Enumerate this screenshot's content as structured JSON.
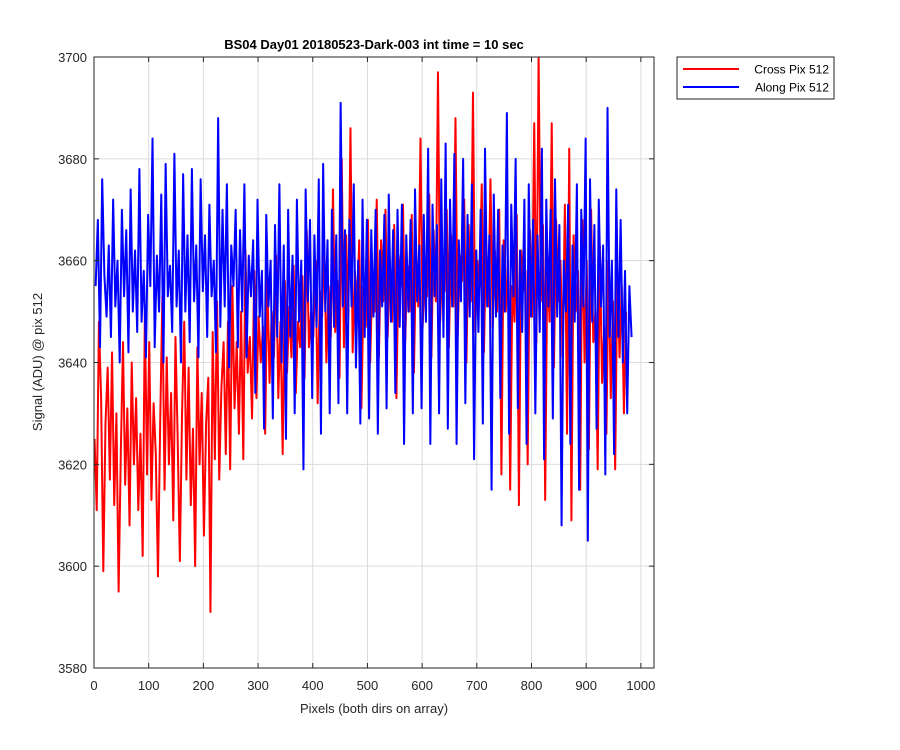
{
  "chart_data": {
    "type": "line",
    "title": "BS04 Day01 20180523-Dark-003 int time = 10 sec",
    "xlabel": "Pixels (both dirs on array)",
    "ylabel": "Signal (ADU) @ pix 512",
    "xlim": [
      0,
      1024
    ],
    "ylim": [
      3580,
      3700
    ],
    "xticks": [
      0,
      100,
      200,
      300,
      400,
      500,
      600,
      700,
      800,
      900,
      1000
    ],
    "yticks": [
      3580,
      3600,
      3620,
      3640,
      3660,
      3680,
      3700
    ],
    "grid": true,
    "legend_position": "outside-top-right",
    "series": [
      {
        "name": "Cross Pix 512",
        "color": "#ff0000",
        "x_start": 1,
        "x_step": 4,
        "values": [
          3625,
          3611,
          3648,
          3633,
          3599,
          3628,
          3639,
          3617,
          3642,
          3612,
          3630,
          3595,
          3622,
          3644,
          3616,
          3631,
          3608,
          3640,
          3620,
          3633,
          3611,
          3626,
          3602,
          3650,
          3618,
          3644,
          3613,
          3632,
          3622,
          3598,
          3628,
          3653,
          3615,
          3641,
          3620,
          3634,
          3609,
          3645,
          3625,
          3601,
          3630,
          3648,
          3617,
          3639,
          3612,
          3627,
          3600,
          3643,
          3620,
          3634,
          3606,
          3628,
          3637,
          3591,
          3646,
          3621,
          3652,
          3617,
          3635,
          3644,
          3622,
          3648,
          3619,
          3655,
          3631,
          3644,
          3626,
          3650,
          3621,
          3662,
          3638,
          3645,
          3629,
          3658,
          3633,
          3649,
          3640,
          3647,
          3626,
          3657,
          3636,
          3650,
          3641,
          3661,
          3633,
          3648,
          3622,
          3656,
          3638,
          3651,
          3641,
          3659,
          3634,
          3648,
          3643,
          3657,
          3637,
          3666,
          3643,
          3650,
          3645,
          3660,
          3632,
          3654,
          3649,
          3663,
          3640,
          3655,
          3645,
          3674,
          3646,
          3656,
          3637,
          3680,
          3643,
          3665,
          3649,
          3686,
          3642,
          3658,
          3651,
          3664,
          3631,
          3655,
          3647,
          3668,
          3640,
          3657,
          3650,
          3672,
          3641,
          3664,
          3652,
          3670,
          3645,
          3660,
          3648,
          3667,
          3633,
          3661,
          3655,
          3671,
          3644,
          3659,
          3650,
          3669,
          3638,
          3662,
          3651,
          3684,
          3647,
          3659,
          3653,
          3673,
          3641,
          3666,
          3652,
          3697,
          3648,
          3660,
          3654,
          3670,
          3643,
          3665,
          3651,
          3688,
          3645,
          3661,
          3656,
          3672,
          3640,
          3667,
          3652,
          3693,
          3646,
          3660,
          3655,
          3675,
          3642,
          3664,
          3651,
          3676,
          3647,
          3662,
          3650,
          3670,
          3618,
          3664,
          3650,
          3660,
          3615,
          3655,
          3648,
          3669,
          3612,
          3662,
          3654,
          3658,
          3620,
          3666,
          3649,
          3687,
          3644,
          3700,
          3652,
          3667,
          3613,
          3660,
          3648,
          3687,
          3639,
          3668,
          3652,
          3660,
          3641,
          3671,
          3626,
          3682,
          3609,
          3665,
          3650,
          3658,
          3615,
          3668,
          3640,
          3660,
          3623,
          3670,
          3644,
          3650,
          3619,
          3663,
          3636,
          3647,
          3626,
          3660,
          3633,
          3652,
          3619,
          3658,
          3641,
          3655,
          3630,
          3650
        ]
      },
      {
        "name": "Along Pix 512",
        "color": "#0000ff",
        "x_start": 3,
        "x_step": 4,
        "values": [
          3655,
          3668,
          3643,
          3676,
          3657,
          3649,
          3663,
          3645,
          3672,
          3651,
          3660,
          3640,
          3670,
          3653,
          3666,
          3642,
          3674,
          3650,
          3662,
          3646,
          3678,
          3648,
          3658,
          3641,
          3669,
          3655,
          3684,
          3643,
          3661,
          3650,
          3673,
          3640,
          3679,
          3653,
          3659,
          3646,
          3681,
          3651,
          3662,
          3640,
          3677,
          3650,
          3665,
          3644,
          3678,
          3652,
          3663,
          3641,
          3676,
          3654,
          3665,
          3645,
          3671,
          3653,
          3660,
          3642,
          3688,
          3647,
          3670,
          3651,
          3675,
          3639,
          3663,
          3655,
          3670,
          3643,
          3666,
          3650,
          3675,
          3641,
          3661,
          3653,
          3664,
          3634,
          3672,
          3649,
          3658,
          3627,
          3669,
          3651,
          3660,
          3629,
          3667,
          3645,
          3675,
          3640,
          3663,
          3625,
          3670,
          3645,
          3661,
          3630,
          3672,
          3648,
          3660,
          3619,
          3674,
          3652,
          3668,
          3633,
          3665,
          3647,
          3676,
          3626,
          3679,
          3650,
          3664,
          3630,
          3670,
          3647,
          3665,
          3632,
          3691,
          3651,
          3666,
          3630,
          3668,
          3651,
          3675,
          3639,
          3660,
          3628,
          3672,
          3645,
          3668,
          3629,
          3666,
          3649,
          3670,
          3626,
          3662,
          3651,
          3669,
          3631,
          3673,
          3648,
          3666,
          3634,
          3670,
          3647,
          3671,
          3624,
          3665,
          3650,
          3668,
          3630,
          3674,
          3652,
          3663,
          3631,
          3669,
          3648,
          3682,
          3624,
          3671,
          3653,
          3667,
          3630,
          3676,
          3645,
          3683,
          3627,
          3672,
          3651,
          3681,
          3624,
          3664,
          3652,
          3680,
          3632,
          3669,
          3649,
          3675,
          3621,
          3662,
          3646,
          3670,
          3628,
          3682,
          3651,
          3665,
          3615,
          3673,
          3649,
          3670,
          3633,
          3663,
          3650,
          3689,
          3626,
          3671,
          3653,
          3680,
          3631,
          3662,
          3646,
          3672,
          3624,
          3675,
          3649,
          3668,
          3630,
          3665,
          3646,
          3682,
          3621,
          3672,
          3651,
          3670,
          3629,
          3676,
          3649,
          3667,
          3608,
          3660,
          3650,
          3671,
          3624,
          3663,
          3648,
          3675,
          3615,
          3670,
          3651,
          3684,
          3605,
          3676,
          3648,
          3667,
          3627,
          3672,
          3651,
          3663,
          3618,
          3690,
          3645,
          3660,
          3622,
          3674,
          3645,
          3668,
          3640,
          3658,
          3630,
          3655,
          3645
        ]
      }
    ]
  }
}
